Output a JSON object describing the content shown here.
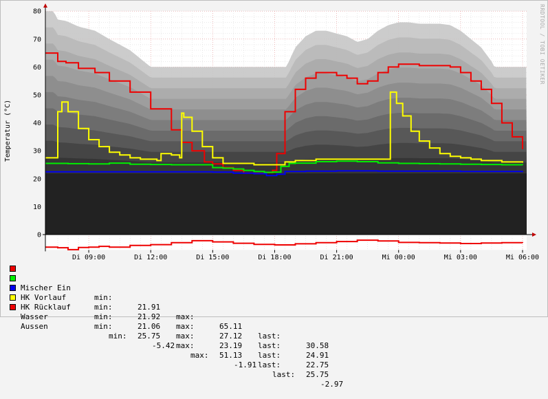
{
  "chart_data": {
    "type": "line",
    "ylabel": "Temperatur (°C)",
    "watermark": "RRDTOOL / TOBI OETIKER",
    "ylim": [
      -5.5,
      80
    ],
    "y_ticks": [
      0,
      10,
      20,
      30,
      40,
      50,
      60,
      70,
      80
    ],
    "x_ticks": [
      "Di 09:00",
      "Di 12:00",
      "Di 15:00",
      "Di 18:00",
      "Di 21:00",
      "Mi 00:00",
      "Mi 03:00",
      "Mi 06:00"
    ],
    "x_tick_hours": [
      9,
      12,
      15,
      18,
      21,
      24,
      27,
      30
    ],
    "xlim_hours": [
      6.9,
      30.2
    ],
    "grid": true,
    "colors": {
      "Mischer Ein": "#ee0000",
      "HK Vorlauf": "#00ee00",
      "HK Rücklauf": "#0000ee",
      "Wasser": "#ffff00",
      "Aussen": "#ee0000"
    },
    "series": [
      {
        "name": "Mischer Ein",
        "x": [
          6.9,
          7.3,
          7.5,
          7.9,
          8.5,
          9.3,
          10.0,
          11.0,
          12.0,
          13.0,
          13.5,
          14.0,
          14.6,
          15.0,
          15.5,
          16.0,
          16.5,
          17.0,
          17.6,
          17.9,
          18.1,
          18.5,
          19.0,
          19.5,
          20.0,
          20.5,
          21.0,
          21.5,
          22.0,
          22.5,
          23.0,
          23.5,
          24.0,
          24.5,
          25.0,
          25.5,
          26.0,
          26.5,
          27.0,
          27.5,
          28.0,
          28.5,
          29.0,
          29.5,
          30.0
        ],
        "y": [
          65,
          65,
          62,
          61.5,
          59.5,
          58,
          55,
          51,
          45,
          37.5,
          33,
          30,
          26,
          25.3,
          24,
          23,
          22,
          21.9,
          22.2,
          23,
          29,
          44,
          52,
          56,
          58,
          58,
          57,
          56,
          54,
          55,
          58,
          60,
          61,
          61,
          60.5,
          60.5,
          60.5,
          60,
          58,
          55,
          52,
          47,
          40,
          35,
          30.6
        ]
      },
      {
        "name": "HK Vorlauf",
        "x": [
          6.9,
          8.0,
          9.0,
          10.0,
          11.0,
          12.0,
          13.0,
          14.0,
          15.0,
          15.5,
          16.0,
          16.5,
          17.0,
          17.5,
          17.9,
          18.3,
          18.7,
          19.0,
          20.0,
          21.0,
          22.0,
          23.0,
          24.0,
          25.0,
          26.0,
          27.0,
          28.0,
          29.0,
          30.0
        ],
        "y": [
          25.5,
          25.4,
          25.3,
          25.6,
          25.2,
          25.1,
          25,
          25,
          24,
          23.8,
          23.5,
          23,
          22.6,
          22.3,
          22.4,
          24.4,
          25.5,
          25.6,
          26.1,
          26.3,
          26.1,
          25.7,
          25.5,
          25.4,
          25.3,
          25.2,
          25.1,
          25.0,
          24.9
        ]
      },
      {
        "name": "HK Rücklauf",
        "x": [
          6.9,
          9.0,
          12.0,
          14.0,
          15.0,
          16.0,
          17.0,
          17.6,
          18.1,
          18.5,
          19.5,
          21.0,
          23.0,
          25.0,
          27.0,
          29.0,
          30.0
        ],
        "y": [
          22.5,
          22.5,
          22.5,
          22.5,
          22.4,
          22,
          21.8,
          21.1,
          21.6,
          22.6,
          22.7,
          22.8,
          22.7,
          22.7,
          22.6,
          22.6,
          22.75
        ]
      },
      {
        "name": "Wasser",
        "x": [
          6.9,
          7.3,
          7.5,
          7.7,
          8.0,
          8.5,
          9.0,
          9.5,
          10.0,
          10.5,
          11.0,
          11.5,
          12.0,
          12.3,
          12.5,
          13.0,
          13.4,
          13.5,
          13.6,
          14.0,
          14.5,
          15.0,
          15.5,
          16.0,
          16.5,
          17.0,
          17.5,
          18.0,
          18.5,
          19.0,
          20.0,
          21.0,
          22.0,
          23.0,
          23.5,
          23.6,
          23.9,
          24.2,
          24.6,
          25.0,
          25.5,
          26.0,
          26.5,
          27.0,
          27.5,
          28.0,
          29.0,
          30.0
        ],
        "y": [
          27.5,
          27.5,
          44,
          47.5,
          44,
          38,
          34,
          31.5,
          29.5,
          28.5,
          27.5,
          27,
          27,
          26.5,
          29,
          28.5,
          27.5,
          43.5,
          42,
          37,
          31.5,
          27.5,
          25.5,
          25.5,
          25.5,
          25,
          25,
          25,
          26,
          26.5,
          27,
          27,
          27,
          27,
          27,
          51,
          47,
          42.5,
          37,
          33.5,
          31,
          29,
          28,
          27.5,
          27,
          26.5,
          26,
          25.75
        ]
      },
      {
        "name": "Aussen",
        "x": [
          6.9,
          7.5,
          8.0,
          8.5,
          9.0,
          9.5,
          10.0,
          11.0,
          12.0,
          13.0,
          14.0,
          15.0,
          16.0,
          17.0,
          18.0,
          19.0,
          20.0,
          21.0,
          22.0,
          23.0,
          24.0,
          25.0,
          26.0,
          27.0,
          28.0,
          29.0,
          30.0
        ],
        "y": [
          -4.5,
          -4.7,
          -5.4,
          -4.6,
          -4.5,
          -4.2,
          -4.5,
          -3.9,
          -3.6,
          -2.9,
          -2.2,
          -2.6,
          -3.1,
          -3.5,
          -3.7,
          -3.3,
          -2.9,
          -2.5,
          -2.0,
          -2.3,
          -2.8,
          -2.9,
          -3.0,
          -3.2,
          -3.0,
          -2.9,
          -2.97
        ]
      }
    ]
  },
  "legend": [
    {
      "name": "Mischer Ein",
      "color": "#ee0000",
      "min_label": "min:",
      "min": "21.91",
      "max_label": "max:",
      "max": "65.11",
      "last_label": "last:",
      "last": "30.58"
    },
    {
      "name": "HK Vorlauf",
      "color": "#00ee00",
      "min_label": "min:",
      "min": "21.92",
      "max_label": "max:",
      "max": "27.12",
      "last_label": "last:",
      "last": "24.91"
    },
    {
      "name": "HK Rücklauf",
      "color": "#0000ee",
      "min_label": "min:",
      "min": "21.06",
      "max_label": "max:",
      "max": "23.19",
      "last_label": "last:",
      "last": "22.75"
    },
    {
      "name": "Wasser",
      "color": "#ffff00",
      "min_label": "min:",
      "min": "25.75",
      "max_label": "max:",
      "max": "51.13",
      "last_label": "last:",
      "last": "25.75"
    },
    {
      "name": "Aussen",
      "color": "#ee0000",
      "min_label": "min:",
      "min": "-5.42",
      "max_label": "max:",
      "max": "-1.91",
      "last_label": "last:",
      "last": "-2.97"
    }
  ]
}
